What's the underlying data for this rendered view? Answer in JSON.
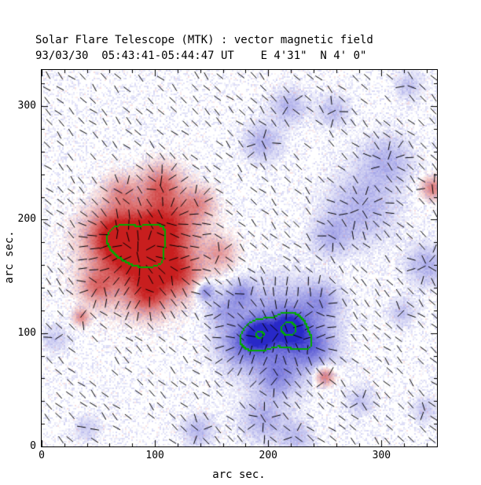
{
  "chart_data": {
    "type": "heatmap",
    "title": "Solar Flare Telescope (MTK) : vector magnetic field",
    "subtitle": "93/03/30  05:43:41-05:44:47 UT    E 4'31\"  N 4' 0\"",
    "xlabel": "arc sec.",
    "ylabel": "arc sec.",
    "xlim": [
      0,
      349
    ],
    "ylim": [
      0,
      332
    ],
    "xticks": [
      0,
      100,
      200,
      300
    ],
    "yticks": [
      0,
      100,
      200,
      300
    ],
    "minor_tick_interval": 20,
    "vector_grid_spacing": 10,
    "legend": "none",
    "grid": false,
    "colors": {
      "positive": "#c81e1e",
      "negative": "#2828c8",
      "contour": "#00aa00",
      "vectors": "#000000",
      "background": "#ffffff",
      "noise_speckle": "#8284e0"
    },
    "contours": {
      "pos_frac": 0.82,
      "outer_frac": 0.55,
      "inner_frac": 0.9
    },
    "sources": [
      {
        "x": 85,
        "y": 168,
        "sigma": 26,
        "a": 0.95
      },
      {
        "x": 112,
        "y": 198,
        "sigma": 20,
        "a": 0.6
      },
      {
        "x": 62,
        "y": 188,
        "sigma": 16,
        "a": 0.55
      },
      {
        "x": 122,
        "y": 152,
        "sigma": 14,
        "a": 0.5
      },
      {
        "x": 95,
        "y": 132,
        "sigma": 12,
        "a": 0.45
      },
      {
        "x": 48,
        "y": 140,
        "sigma": 10,
        "a": 0.4
      },
      {
        "x": 105,
        "y": 232,
        "sigma": 12,
        "a": 0.45
      },
      {
        "x": 70,
        "y": 225,
        "sigma": 10,
        "a": 0.35
      },
      {
        "x": 140,
        "y": 215,
        "sigma": 9,
        "a": 0.3
      },
      {
        "x": 158,
        "y": 170,
        "sigma": 10,
        "a": 0.35
      },
      {
        "x": 35,
        "y": 114,
        "sigma": 5,
        "a": 0.45
      },
      {
        "x": 250,
        "y": 62,
        "sigma": 6,
        "a": 0.6
      },
      {
        "x": 345,
        "y": 228,
        "sigma": 7,
        "a": 0.5
      },
      {
        "x": 210,
        "y": 101,
        "sigma": 28,
        "a": -0.55
      },
      {
        "x": 193,
        "y": 99,
        "sigma": 9,
        "a": -0.5
      },
      {
        "x": 219,
        "y": 104,
        "sigma": 9,
        "a": -0.62
      },
      {
        "x": 176,
        "y": 90,
        "sigma": 14,
        "a": -0.35
      },
      {
        "x": 240,
        "y": 88,
        "sigma": 13,
        "a": -0.35
      },
      {
        "x": 208,
        "y": 60,
        "sigma": 12,
        "a": -0.3
      },
      {
        "x": 247,
        "y": 128,
        "sigma": 12,
        "a": -0.3
      },
      {
        "x": 160,
        "y": 120,
        "sigma": 10,
        "a": -0.28
      },
      {
        "x": 144,
        "y": 137,
        "sigma": 6,
        "a": -0.5
      },
      {
        "x": 176,
        "y": 135,
        "sigma": 8,
        "a": -0.33
      },
      {
        "x": 282,
        "y": 210,
        "sigma": 22,
        "a": -0.3
      },
      {
        "x": 305,
        "y": 252,
        "sigma": 16,
        "a": -0.28
      },
      {
        "x": 255,
        "y": 185,
        "sigma": 12,
        "a": -0.25
      },
      {
        "x": 195,
        "y": 268,
        "sigma": 12,
        "a": -0.3
      },
      {
        "x": 218,
        "y": 300,
        "sigma": 11,
        "a": -0.28
      },
      {
        "x": 258,
        "y": 296,
        "sigma": 10,
        "a": -0.25
      },
      {
        "x": 324,
        "y": 318,
        "sigma": 9,
        "a": -0.22
      },
      {
        "x": 340,
        "y": 160,
        "sigma": 13,
        "a": -0.3
      },
      {
        "x": 318,
        "y": 118,
        "sigma": 9,
        "a": -0.22
      },
      {
        "x": 196,
        "y": 24,
        "sigma": 14,
        "a": -0.3
      },
      {
        "x": 138,
        "y": 14,
        "sigma": 10,
        "a": -0.28
      },
      {
        "x": 225,
        "y": 8,
        "sigma": 10,
        "a": -0.25
      },
      {
        "x": 282,
        "y": 40,
        "sigma": 9,
        "a": -0.22
      },
      {
        "x": 338,
        "y": 32,
        "sigma": 8,
        "a": -0.2
      },
      {
        "x": 12,
        "y": 95,
        "sigma": 9,
        "a": -0.2
      },
      {
        "x": 40,
        "y": 16,
        "sigma": 8,
        "a": -0.2
      }
    ]
  }
}
